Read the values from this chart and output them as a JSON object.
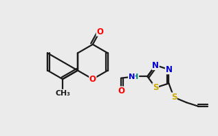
{
  "bg_color": "#ebebeb",
  "bond_color": "#1a1a1a",
  "bond_width": 1.6,
  "atom_colors": {
    "O": "#ff0000",
    "N": "#0000cc",
    "S": "#ccaa00",
    "NH": "#008080",
    "C": "#1a1a1a"
  },
  "font_size": 8.5,
  "xlim": [
    0,
    10
  ],
  "ylim": [
    2.5,
    8.5
  ]
}
